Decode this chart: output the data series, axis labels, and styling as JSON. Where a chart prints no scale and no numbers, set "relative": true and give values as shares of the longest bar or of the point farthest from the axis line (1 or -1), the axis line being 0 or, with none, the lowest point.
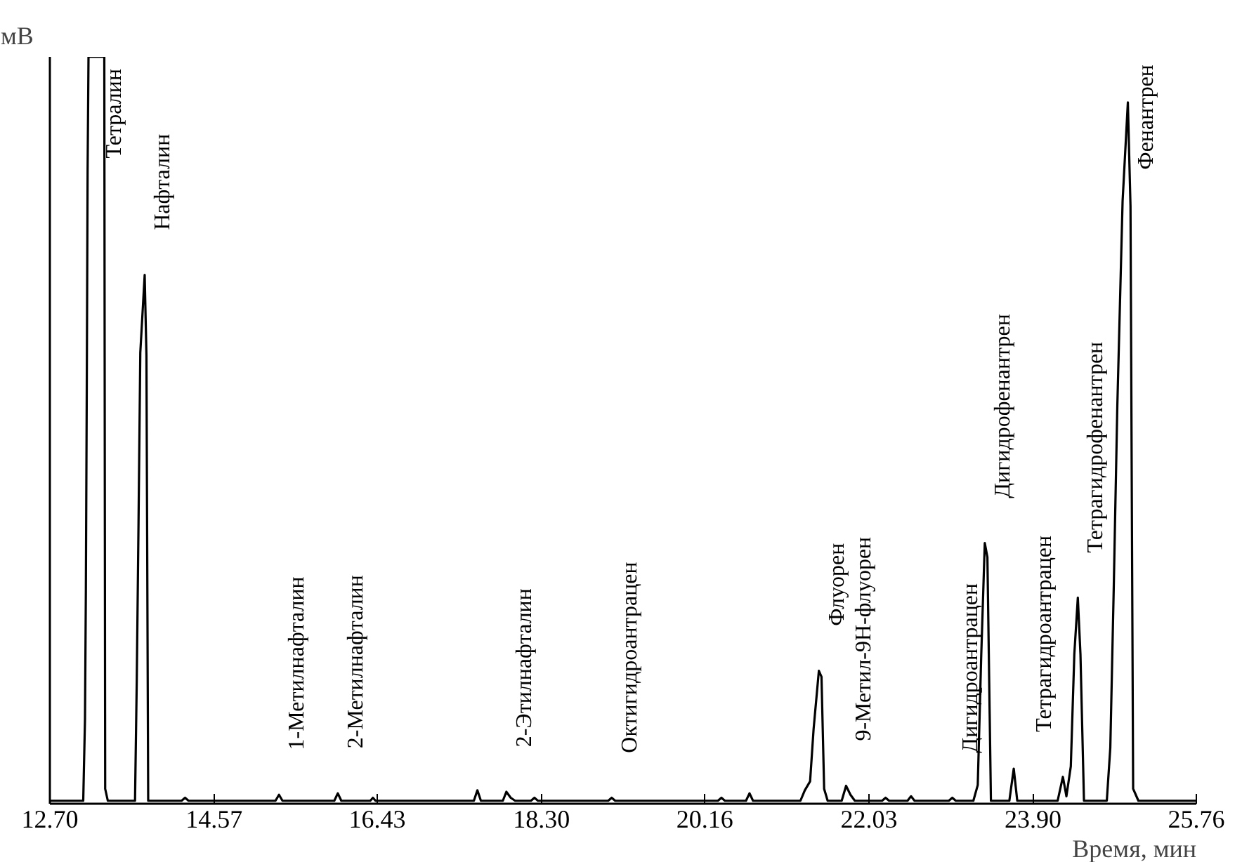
{
  "chart_data": {
    "type": "line",
    "relative": true,
    "xlabel": "Время, мин",
    "ylabel": "мВ",
    "x": [
      12.7,
      13.08,
      13.1,
      13.11,
      13.12,
      13.13,
      13.14,
      13.32,
      13.33,
      13.36,
      13.67,
      13.69,
      13.71,
      13.73,
      13.78,
      13.8,
      13.82,
      14.2,
      14.24,
      14.28,
      15.27,
      15.31,
      15.35,
      15.94,
      15.98,
      16.02,
      16.35,
      16.38,
      16.41,
      17.53,
      17.57,
      17.61,
      17.86,
      17.9,
      17.95,
      18.0,
      18.18,
      18.22,
      18.26,
      19.06,
      19.1,
      19.14,
      20.31,
      20.35,
      20.39,
      20.63,
      20.67,
      20.71,
      21.25,
      21.3,
      21.36,
      21.4,
      21.46,
      21.49,
      21.52,
      21.56,
      21.72,
      21.77,
      21.82,
      21.87,
      22.18,
      22.22,
      22.26,
      22.47,
      22.51,
      22.55,
      22.94,
      22.98,
      23.02,
      23.22,
      23.27,
      23.31,
      23.35,
      23.38,
      23.42,
      23.63,
      23.68,
      23.72,
      24.18,
      24.24,
      24.28,
      24.33,
      24.37,
      24.41,
      24.44,
      24.48,
      24.74,
      24.78,
      24.82,
      24.86,
      24.92,
      24.98,
      25.01,
      25.04,
      25.1,
      25.76
    ],
    "series": [
      {
        "color": "#000000",
        "values": [
          0.004,
          0.004,
          0.113,
          0.285,
          0.55,
          0.85,
          1.0,
          1.0,
          0.02,
          0.004,
          0.004,
          0.167,
          0.378,
          0.604,
          0.708,
          0.6,
          0.004,
          0.004,
          0.008,
          0.004,
          0.004,
          0.012,
          0.004,
          0.004,
          0.014,
          0.004,
          0.004,
          0.008,
          0.004,
          0.004,
          0.018,
          0.004,
          0.004,
          0.016,
          0.008,
          0.004,
          0.004,
          0.008,
          0.004,
          0.004,
          0.008,
          0.004,
          0.004,
          0.008,
          0.004,
          0.004,
          0.014,
          0.004,
          0.004,
          0.018,
          0.03,
          0.1,
          0.178,
          0.17,
          0.02,
          0.004,
          0.004,
          0.024,
          0.012,
          0.004,
          0.004,
          0.008,
          0.004,
          0.004,
          0.01,
          0.004,
          0.004,
          0.008,
          0.004,
          0.004,
          0.025,
          0.2,
          0.349,
          0.33,
          0.004,
          0.004,
          0.047,
          0.004,
          0.004,
          0.036,
          0.01,
          0.05,
          0.2,
          0.276,
          0.2,
          0.004,
          0.004,
          0.075,
          0.294,
          0.533,
          0.807,
          0.939,
          0.8,
          0.02,
          0.004,
          0.004
        ]
      }
    ],
    "xlim": [
      12.7,
      25.76
    ],
    "xticks": [
      {
        "value": 12.7,
        "label": "12.70"
      },
      14.57,
      16.43,
      {
        "value": 18.3,
        "label": "18.30"
      },
      20.16,
      22.03,
      {
        "value": 23.9,
        "label": "23.90"
      },
      25.76
    ],
    "grid": false,
    "annotations": [
      {
        "text": "Тетралин",
        "x": 13.23,
        "y": 1.0
      },
      {
        "text": "Нафталин",
        "x": 13.78,
        "y": 0.708
      },
      {
        "text": "1-Метилнафталин",
        "x": 15.31,
        "y": 0.012
      },
      {
        "text": "2-Метилнафталин",
        "x": 15.98,
        "y": 0.014
      },
      {
        "text": "2-Этилнафталин",
        "x": 17.9,
        "y": 0.016
      },
      {
        "text": "Октигидроантрацен",
        "x": 19.1,
        "y": 0.008
      },
      {
        "text": "Флуорен",
        "x": 21.46,
        "y": 0.178
      },
      {
        "text": "9-Метил-9Н-флуорен",
        "x": 21.77,
        "y": 0.024
      },
      {
        "text": "Дигидроантрацен",
        "x": 22.98,
        "y": 0.008
      },
      {
        "text": "Дигидрофенантрен",
        "x": 23.35,
        "y": 0.349
      },
      {
        "text": "Тетрагидроантрацен",
        "x": 24.24,
        "y": 0.036
      },
      {
        "text": "Тетрагидрофенантрен",
        "x": 24.41,
        "y": 0.276
      },
      {
        "text": "Фенантрен",
        "x": 24.98,
        "y": 0.939
      }
    ]
  }
}
